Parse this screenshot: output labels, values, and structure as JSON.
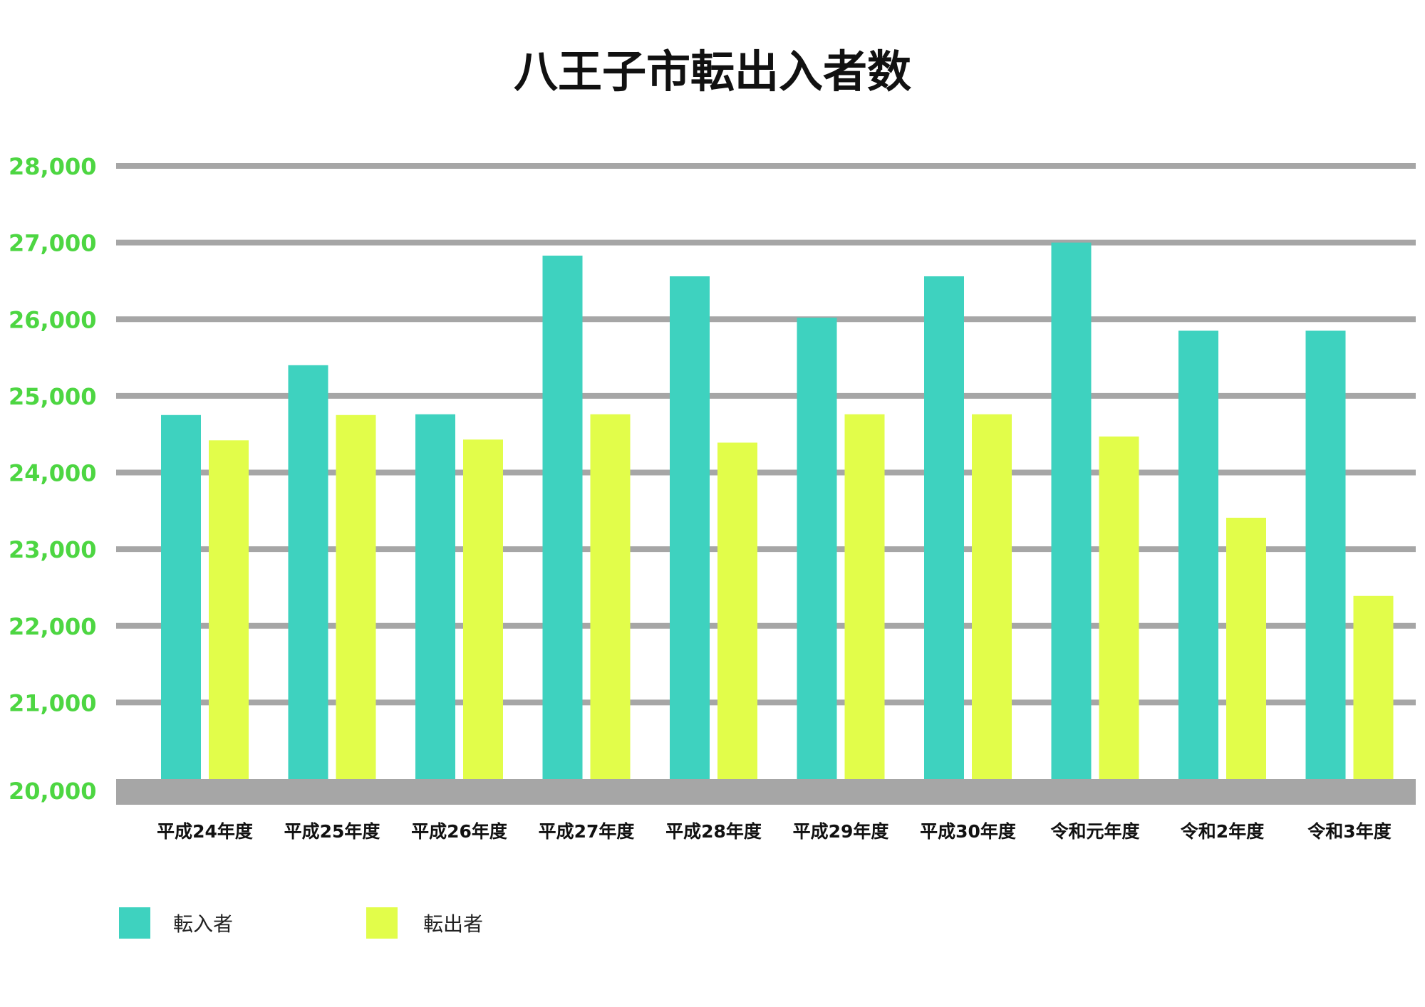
{
  "chart_data": {
    "type": "bar",
    "title": "八王子市転出入者数",
    "xlabel": "",
    "ylabel": "",
    "ylim": [
      20000,
      28000
    ],
    "yticks": [
      20000,
      21000,
      22000,
      23000,
      24000,
      25000,
      26000,
      27000,
      28000
    ],
    "ytick_labels": [
      "20,000",
      "21,000",
      "22,000",
      "23,000",
      "24,000",
      "25,000",
      "26,000",
      "27,000",
      "28,000"
    ],
    "categories": [
      "平成24年度",
      "平成25年度",
      "平成26年度",
      "平成27年度",
      "平成28年度",
      "平成29年度",
      "平成30年度",
      "令和元年度",
      "令和2年度",
      "令和3年度"
    ],
    "series": [
      {
        "name": "転入者",
        "color": "#3ED2BF",
        "values": [
          24750,
          25400,
          24760,
          26830,
          26560,
          26020,
          26560,
          27000,
          25850,
          25850
        ]
      },
      {
        "name": "転出者",
        "color": "#E2FD4A",
        "values": [
          24420,
          24750,
          24430,
          24760,
          24390,
          24760,
          24760,
          24470,
          23410,
          22390
        ]
      }
    ],
    "grid": true,
    "legend_position": "bottom-left",
    "colors": {
      "tick_label": "#4DD642",
      "grid": "#A6A6A6",
      "baseline": "#A6A6A6"
    }
  }
}
